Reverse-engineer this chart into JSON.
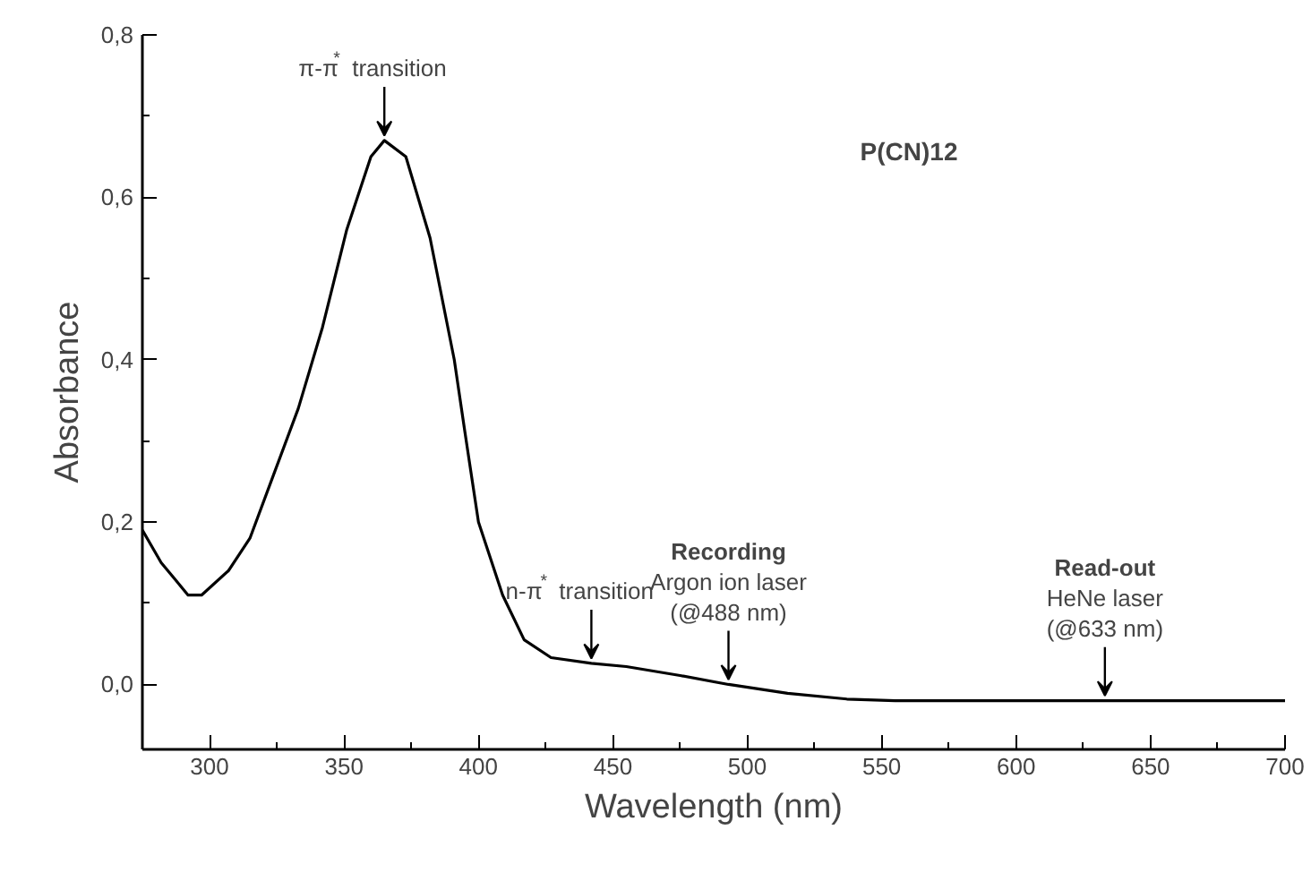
{
  "chart_data": {
    "type": "line",
    "xlabel": "Wavelength (nm)",
    "ylabel": "Absorbance",
    "x": [
      275,
      282,
      287,
      292,
      297,
      307,
      315,
      324,
      333,
      342,
      351,
      360,
      365,
      373,
      382,
      391,
      395,
      400,
      409,
      417,
      427,
      442,
      455,
      475,
      493,
      515,
      537,
      555,
      600,
      650,
      700
    ],
    "series": [
      {
        "color": "#000000",
        "values": [
          0.19,
          0.15,
          0.13,
          0.11,
          0.11,
          0.14,
          0.18,
          0.26,
          0.34,
          0.44,
          0.56,
          0.65,
          0.67,
          0.65,
          0.55,
          0.4,
          0.31,
          0.2,
          0.11,
          0.055,
          0.033,
          0.026,
          0.022,
          0.011,
          0.0,
          -0.011,
          -0.018,
          -0.02,
          -0.02,
          -0.02,
          -0.02
        ]
      }
    ],
    "xlim": [
      275,
      700
    ],
    "xticks": [
      300,
      350,
      400,
      450,
      500,
      550,
      600,
      650,
      700
    ],
    "ylim": [
      -0.08,
      0.8
    ],
    "yticks": [
      {
        "value": 0.0,
        "label": "0,0"
      },
      {
        "value": 0.2,
        "label": "0,2"
      },
      {
        "value": 0.4,
        "label": "0,4"
      },
      {
        "value": 0.6,
        "label": "0,6"
      },
      {
        "value": 0.8,
        "label": "0,8"
      }
    ],
    "grid": false,
    "marker": "none",
    "line_style": "solid",
    "annotations": [
      "P(CN)12",
      {
        "text": "π-π$^{*}$ transition",
        "x": 365,
        "y": 0.67
      },
      {
        "text": "n-π$^{*}$ transition",
        "x": 442,
        "y": 0.026
      },
      {
        "text": "Recording\nArgon ion laser\n(@488 nm)",
        "x": 493,
        "y": 0.0
      },
      {
        "text": "Read-out\nHeNe laser\n(@633 nm)",
        "x": 633,
        "y": -0.02
      }
    ]
  }
}
